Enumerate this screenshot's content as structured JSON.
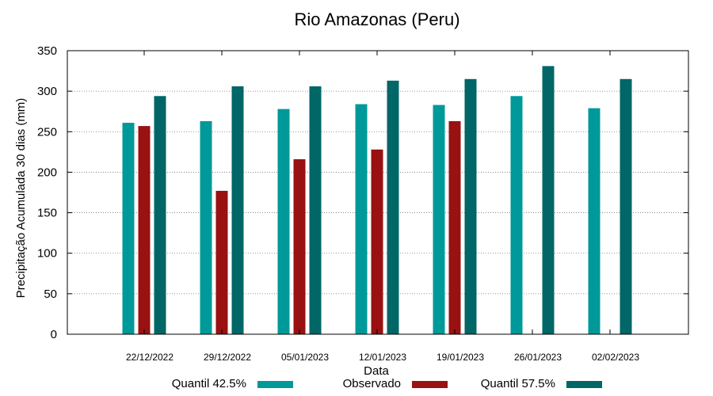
{
  "chart_data": {
    "type": "bar",
    "title": "Rio Amazonas (Peru)",
    "xlabel": "Data",
    "ylabel": "Precipitação Acumulada 30 dias (mm)",
    "ylim": [
      0,
      350
    ],
    "yticks": [
      0,
      50,
      100,
      150,
      200,
      250,
      300,
      350
    ],
    "grid": true,
    "legend": "bottom",
    "categories": [
      "22/12/2022",
      "29/12/2022",
      "05/01/2023",
      "12/01/2023",
      "19/01/2023",
      "26/01/2023",
      "02/02/2023"
    ],
    "series": [
      {
        "name": "Quantil 42.5%",
        "color": "#009999",
        "values": [
          261,
          263,
          278,
          284,
          283,
          294,
          279
        ]
      },
      {
        "name": "Observado",
        "color": "#991111",
        "values": [
          257,
          177,
          216,
          228,
          263,
          null,
          null
        ]
      },
      {
        "name": "Quantil 57.5%",
        "color": "#006666",
        "values": [
          294,
          306,
          306,
          313,
          315,
          331,
          315
        ]
      }
    ]
  }
}
